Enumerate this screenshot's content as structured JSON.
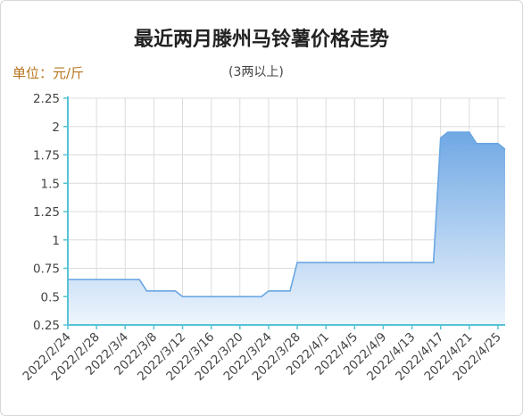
{
  "title": "最近两月滕州马铃薯价格走势",
  "unit_label": "单位：元/斤",
  "subtitle": "(3两以上)",
  "colors": {
    "line": "#6aa6e2",
    "fill_top": "#6fa8e4",
    "fill_bottom": "#eef5fd",
    "grid": "#dcdcdc",
    "axis": "#56c3d4",
    "unit_text": "#b8741c"
  },
  "chart_data": {
    "type": "area",
    "title": "最近两月滕州马铃薯价格走势",
    "subtitle": "(3两以上)",
    "ylabel": "单位：元/斤",
    "xlabel": "",
    "ylim": [
      0.25,
      2.25
    ],
    "yticks": [
      "0.25",
      "0.5",
      "0.75",
      "1",
      "1.25",
      "1.5",
      "1.75",
      "2",
      "2.25"
    ],
    "xticks": [
      "2022/2/24",
      "2022/2/28",
      "2022/3/4",
      "2022/3/8",
      "2022/3/12",
      "2022/3/16",
      "2022/3/20",
      "2022/3/24",
      "2022/3/28",
      "2022/4/1",
      "2022/4/5",
      "2022/4/9",
      "2022/4/13",
      "2022/4/17",
      "2022/4/21",
      "2022/4/25"
    ],
    "grid": true,
    "legend": "none",
    "series": [
      {
        "x": [
          "2022/2/24",
          "2022/3/6",
          "2022/3/7",
          "2022/3/11",
          "2022/3/12",
          "2022/3/23",
          "2022/3/24",
          "2022/3/27",
          "2022/3/28",
          "2022/4/16",
          "2022/4/17",
          "2022/4/18",
          "2022/4/21",
          "2022/4/22",
          "2022/4/23",
          "2022/4/25",
          "2022/4/26"
        ],
        "values": [
          0.65,
          0.65,
          0.55,
          0.55,
          0.5,
          0.5,
          0.55,
          0.55,
          0.8,
          0.8,
          1.9,
          1.95,
          1.95,
          1.85,
          1.85,
          1.85,
          1.8
        ]
      }
    ]
  }
}
